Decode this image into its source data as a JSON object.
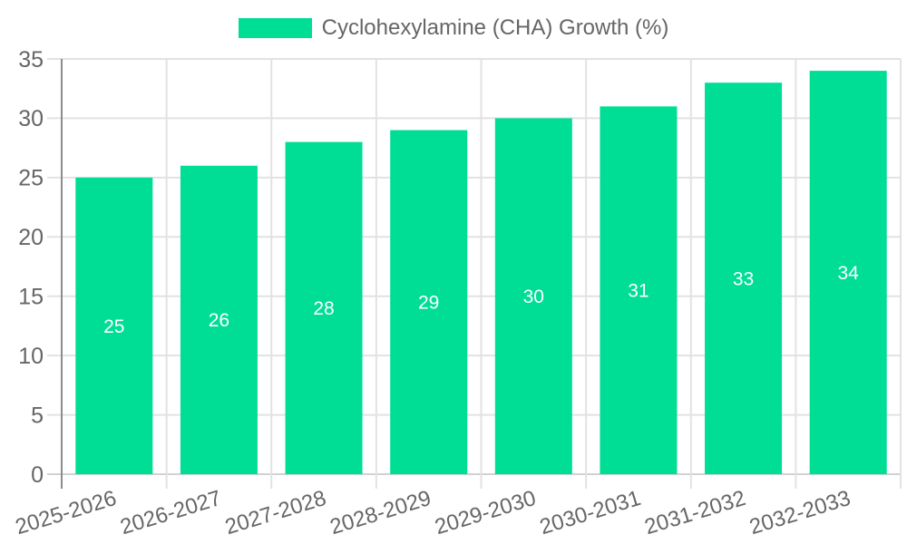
{
  "legend": {
    "position": "top"
  },
  "chart_data": {
    "type": "bar",
    "title": "",
    "xlabel": "",
    "ylabel": "",
    "categories": [
      "2025-2026",
      "2026-2027",
      "2027-2028",
      "2028-2029",
      "2029-2030",
      "2030-2031",
      "2031-2032",
      "2032-2033"
    ],
    "series": [
      {
        "name": "Cyclohexylamine (CHA) Growth (%)",
        "values": [
          25,
          26,
          28,
          29,
          30,
          31,
          33,
          34
        ]
      }
    ],
    "value_labels": [
      "25",
      "26",
      "28",
      "29",
      "30",
      "31",
      "33",
      "34"
    ],
    "ylim": [
      0,
      35
    ],
    "yticks": [
      0,
      5,
      10,
      15,
      20,
      25,
      30,
      35
    ],
    "grid": true,
    "legend_position": "top-center",
    "x_tick_rotation_deg": -17,
    "colors": {
      "bar": "#00DE96",
      "value_label": "#ffffff",
      "axis_text": "#666666",
      "legend_text": "#666666",
      "gridline": "#e2e2e2",
      "baseline": "#d2d2d2",
      "axis_line": "#8c8c8c",
      "background": "#ffffff"
    }
  }
}
